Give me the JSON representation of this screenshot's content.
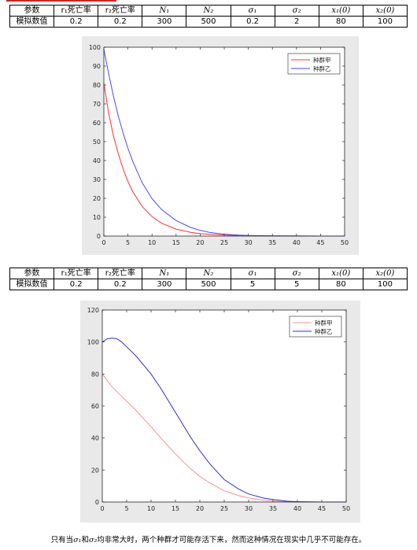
{
  "tables": [
    {
      "headers": [
        "参数",
        "r₁死亡率",
        "r₂死亡率",
        "N₁",
        "N₂",
        "σ₁",
        "σ₂",
        "x₁(0)",
        "x₂(0)"
      ],
      "rows": [
        [
          "模拟数值",
          "0.2",
          "0.2",
          "300",
          "500",
          "0.2",
          "2",
          "80",
          "100"
        ]
      ]
    },
    {
      "headers": [
        "参数",
        "r₁死亡率",
        "r₂死亡率",
        "N₁",
        "N₂",
        "σ₁",
        "σ₂",
        "x₁(0)",
        "x₂(0)"
      ],
      "rows": [
        [
          "模拟数值",
          "0.2",
          "0.2",
          "300",
          "500",
          "5",
          "5",
          "80",
          "100"
        ]
      ]
    }
  ],
  "chart_data": [
    {
      "type": "line",
      "xlim": [
        0,
        50
      ],
      "ylim": [
        0,
        100
      ],
      "xticks": [
        "0",
        "5",
        "10",
        "15",
        "20",
        "25",
        "30",
        "35",
        "40",
        "45",
        "50"
      ],
      "yticks": [
        "0",
        "10",
        "20",
        "30",
        "40",
        "50",
        "60",
        "70",
        "80",
        "90",
        "100"
      ],
      "legend_position": "top-right",
      "series": [
        {
          "name": "种群甲",
          "color": "#ff3030",
          "x": [
            0,
            1,
            2,
            3,
            4,
            5,
            6,
            8,
            10,
            12,
            15,
            18,
            20,
            22,
            25,
            28,
            30,
            35,
            40,
            45,
            50
          ],
          "y": [
            81,
            65,
            53,
            43.5,
            35.5,
            29,
            23.5,
            15.5,
            10.3,
            6.8,
            3.7,
            2.0,
            1.3,
            0.9,
            0.5,
            0.3,
            0.2,
            0.1,
            0.05,
            0.02,
            0
          ]
        },
        {
          "name": "种群乙",
          "color": "#4a4af5",
          "x": [
            0,
            1,
            2,
            3,
            4,
            5,
            6,
            8,
            10,
            12,
            15,
            18,
            20,
            22,
            25,
            28,
            30,
            35,
            40,
            45,
            50
          ],
          "y": [
            99,
            86,
            74,
            63.5,
            54.5,
            46.5,
            39.5,
            28,
            19.8,
            14,
            8.2,
            4.6,
            3.0,
            1.9,
            1.0,
            0.5,
            0.3,
            0.1,
            0.05,
            0.02,
            0
          ]
        }
      ]
    },
    {
      "type": "line",
      "xlim": [
        0,
        50
      ],
      "ylim": [
        0,
        120
      ],
      "xticks": [
        "0",
        "5",
        "10",
        "15",
        "20",
        "25",
        "30",
        "35",
        "40",
        "45",
        "50"
      ],
      "yticks": [
        "0",
        "20",
        "40",
        "60",
        "80",
        "100",
        "120"
      ],
      "legend_position": "top-right",
      "series": [
        {
          "name": "种群甲",
          "color": "#ff8f8f",
          "x": [
            0,
            1,
            2,
            3,
            5,
            7,
            10,
            12,
            15,
            18,
            20,
            22,
            25,
            28,
            30,
            33,
            35,
            38,
            40,
            45,
            50
          ],
          "y": [
            80,
            76,
            72,
            69,
            63,
            57,
            47,
            40,
            30,
            21,
            16,
            12,
            7,
            4,
            2.5,
            1.2,
            0.6,
            0.2,
            0.1,
            0,
            0
          ]
        },
        {
          "name": "种群乙",
          "color": "#3030cc",
          "x": [
            0,
            1,
            2,
            3,
            4,
            5,
            7,
            10,
            12,
            15,
            18,
            20,
            22,
            25,
            28,
            30,
            33,
            35,
            38,
            40,
            45,
            50
          ],
          "y": [
            100,
            102,
            102.5,
            102,
            100,
            97,
            91,
            80,
            71,
            56,
            41,
            32,
            24,
            14,
            8,
            5,
            2.5,
            1.5,
            0.5,
            0.2,
            0,
            0
          ]
        }
      ]
    }
  ],
  "note": {
    "part1": "只有当",
    "sym1": "σ₁",
    "part2": "和",
    "sym2": "σ₂",
    "part3": "均非常大时，两个种群才可能存活下来，然而这种情况在现实中几乎不可能存在。"
  }
}
